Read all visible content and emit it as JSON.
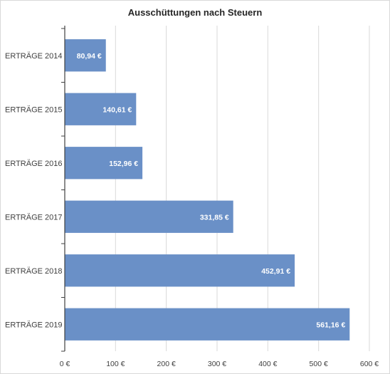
{
  "chart_data": {
    "type": "bar",
    "orientation": "horizontal",
    "title": "Ausschüttungen nach Steuern",
    "categories": [
      "ERTRÄGE 2014",
      "ERTRÄGE 2015",
      "ERTRÄGE 2016",
      "ERTRÄGE 2017",
      "ERTRÄGE 2018",
      "ERTRÄGE 2019"
    ],
    "values": [
      80.94,
      140.61,
      152.96,
      331.85,
      452.91,
      561.16
    ],
    "data_labels": [
      "80,94 €",
      "140,61 €",
      "152,96 €",
      "331,85 €",
      "452,91 €",
      "561,16 €"
    ],
    "xlim": [
      0,
      600
    ],
    "x_ticks": [
      0,
      100,
      200,
      300,
      400,
      500,
      600
    ],
    "x_tick_labels": [
      "0 €",
      "100 €",
      "200 €",
      "300 €",
      "400 €",
      "500 €",
      "600 €"
    ],
    "grid": "vertical",
    "legend": "none",
    "bar_color": "#6a90c7"
  }
}
